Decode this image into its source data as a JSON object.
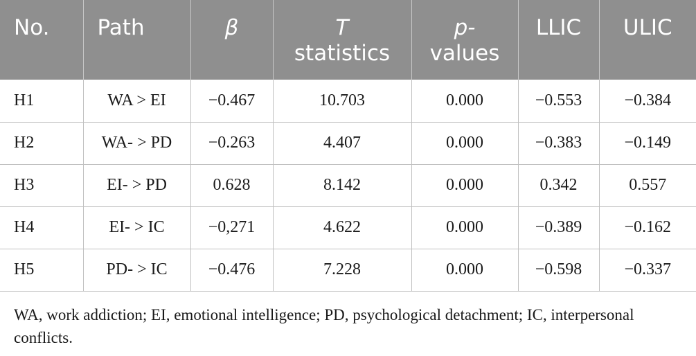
{
  "table": {
    "headers": [
      {
        "line1": "No.",
        "line2": ""
      },
      {
        "line1": "Path",
        "line2": ""
      },
      {
        "line1": "β",
        "line2": ""
      },
      {
        "line1": "T",
        "line2": "statistics"
      },
      {
        "line1": "p-",
        "line2": "values"
      },
      {
        "line1": "LLIC",
        "line2": ""
      },
      {
        "line1": "ULIC",
        "line2": ""
      }
    ],
    "rows": [
      {
        "no": "H1",
        "path": "WA > EI",
        "beta": "−0.467",
        "t": "10.703",
        "p": "0.000",
        "llic": "−0.553",
        "ulic": "−0.384"
      },
      {
        "no": "H2",
        "path": "WA- > PD",
        "beta": "−0.263",
        "t": "4.407",
        "p": "0.000",
        "llic": "−0.383",
        "ulic": "−0.149"
      },
      {
        "no": "H3",
        "path": "EI- > PD",
        "beta": "0.628",
        "t": "8.142",
        "p": "0.000",
        "llic": "0.342",
        "ulic": "0.557"
      },
      {
        "no": "H4",
        "path": "EI- > IC",
        "beta": "−0,271",
        "t": "4.622",
        "p": "0.000",
        "llic": "−0.389",
        "ulic": "−0.162"
      },
      {
        "no": "H5",
        "path": "PD- > IC",
        "beta": "−0.476",
        "t": "7.228",
        "p": "0.000",
        "llic": "−0.598",
        "ulic": "−0.337"
      }
    ]
  },
  "footnote": "WA, work addiction; EI, emotional intelligence; PD, psychological detachment; IC, interpersonal conflicts.",
  "colors": {
    "header_bg": "#8f8f8f",
    "header_text": "#ffffff",
    "grid": "#c0c0c0"
  }
}
